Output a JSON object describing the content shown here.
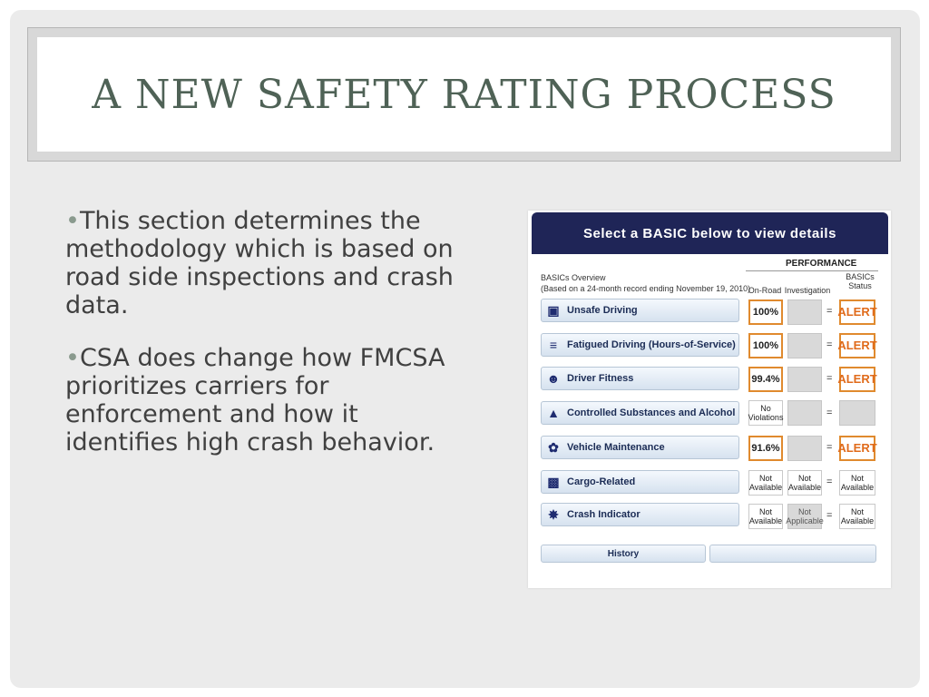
{
  "title": "A New Safety Rating Process",
  "bullets": [
    "This section determines the methodology which is based on road side inspections and crash data.",
    "CSA does change how FMCSA prioritizes carriers for enforcement and how it identifies high crash behavior."
  ],
  "panel": {
    "header": "Select a BASIC below to view details",
    "performance_label": "PERFORMANCE",
    "overview_title": "BASICs Overview",
    "overview_sub": "(Based on a 24-month record ending November 19, 2010)",
    "col_onroad": "On-Road",
    "col_investigation": "Investigation",
    "col_status": "BASICs Status",
    "equals": "=",
    "rows": [
      {
        "icon": "car-icon",
        "label": "Unsafe Driving",
        "onroad": "100%",
        "investigation": "",
        "status": "ALERT"
      },
      {
        "icon": "sleep-icon",
        "label": "Fatigued Driving (Hours-of-Service)",
        "onroad": "100%",
        "investigation": "",
        "status": "ALERT"
      },
      {
        "icon": "person-icon",
        "label": "Driver Fitness",
        "onroad": "99.4%",
        "investigation": "",
        "status": "ALERT"
      },
      {
        "icon": "bottle-icon",
        "label": "Controlled Substances and Alcohol",
        "onroad": "No Violations",
        "investigation": "",
        "status": ""
      },
      {
        "icon": "wrench-icon",
        "label": "Vehicle Maintenance",
        "onroad": "91.6%",
        "investigation": "",
        "status": "ALERT"
      },
      {
        "icon": "cargo-icon",
        "label": "Cargo-Related",
        "onroad": "Not Available",
        "investigation": "Not Available",
        "status": "Not Available"
      },
      {
        "icon": "crash-icon",
        "label": "Crash Indicator",
        "onroad": "Not Available",
        "investigation": "Not Applicable",
        "status": "Not Available"
      }
    ],
    "history_label": "History"
  }
}
